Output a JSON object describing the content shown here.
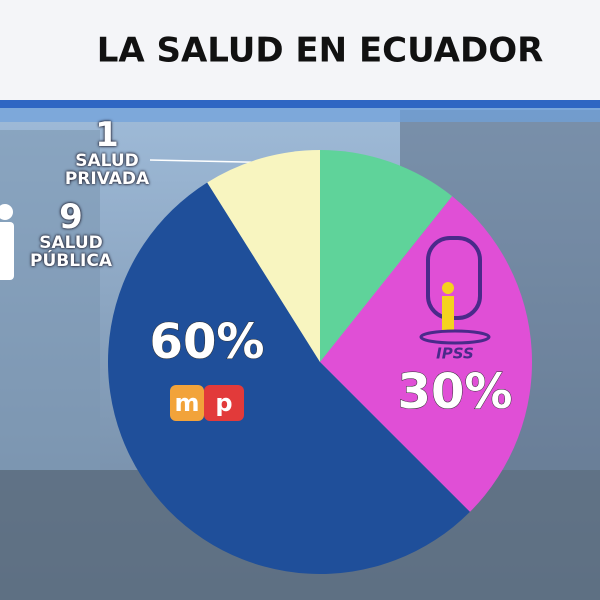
{
  "chart_data": {
    "type": "pie",
    "title": "LA SALUD EN ECUADOR",
    "categories": [
      null,
      null,
      null,
      null
    ],
    "values": [
      12,
      30,
      60,
      10
    ],
    "value_labels": [
      null,
      "30%",
      "60%",
      null
    ],
    "colors": [
      "#5fd39a",
      "#e04fd6",
      "#1f4f9a",
      "#f8f5c0"
    ],
    "annotations": [
      {
        "number": "1",
        "label": "SALUD PRIVADA"
      },
      {
        "number": "9",
        "label": "SALUD PÚBLICA"
      }
    ],
    "logos": {
      "msp": [
        "m",
        "p"
      ],
      "iess": "IPSS"
    }
  }
}
